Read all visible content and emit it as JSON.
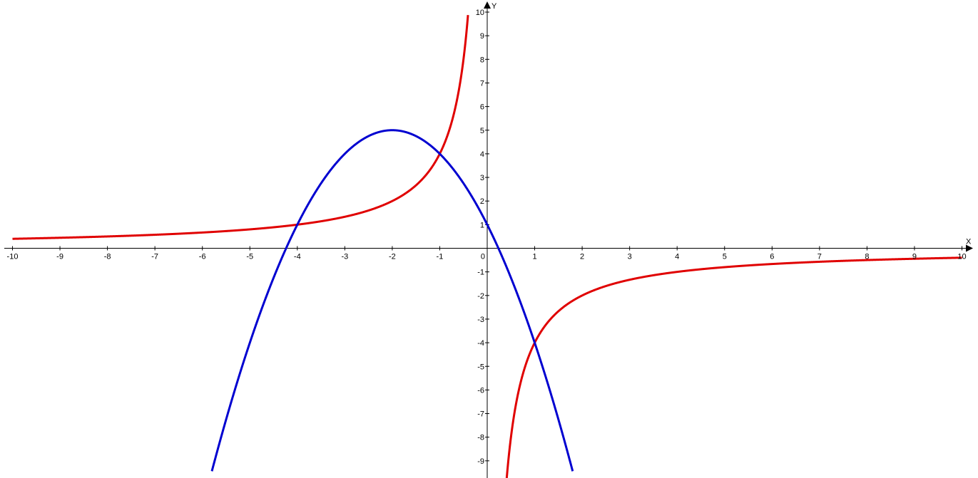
{
  "chart_data": {
    "type": "line",
    "title": "",
    "xlabel": "X",
    "ylabel": "Y",
    "xlim": [
      -10,
      10
    ],
    "ylim": [
      -9.7,
      10
    ],
    "grid": false,
    "x_ticks": [
      "-10",
      "-9",
      "-8",
      "-7",
      "-6",
      "-5",
      "-4",
      "-3",
      "-2",
      "-1",
      "0",
      "1",
      "2",
      "3",
      "4",
      "5",
      "6",
      "7",
      "8",
      "9",
      "10"
    ],
    "y_ticks": [
      "-9",
      "-8",
      "-7",
      "-6",
      "-5",
      "-4",
      "-3",
      "-2",
      "-1",
      "1",
      "2",
      "3",
      "4",
      "5",
      "6",
      "7",
      "8",
      "9",
      "10"
    ],
    "series": [
      {
        "color": "#e00000",
        "function": "y = -4/x",
        "x_range": [
          -10,
          10
        ]
      },
      {
        "color": "#0000d0",
        "function": "y = -x^2 - 4x + 1",
        "x_range": [
          -5.8,
          1.8
        ]
      }
    ],
    "intersections": [
      [
        -4,
        1
      ],
      [
        -1,
        4
      ],
      [
        1,
        -4
      ]
    ]
  }
}
